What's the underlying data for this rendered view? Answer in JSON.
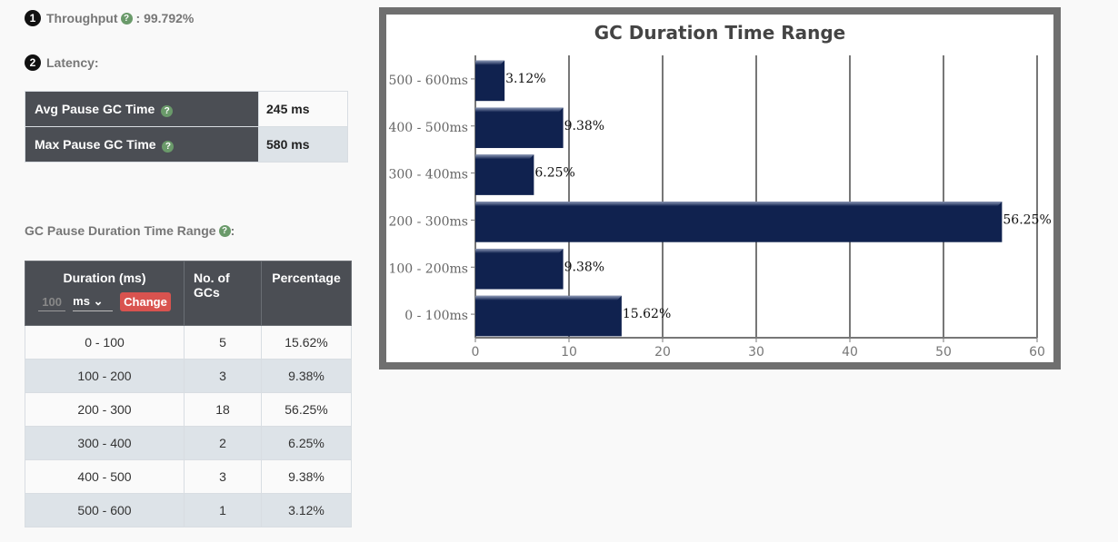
{
  "throughput": {
    "index": "1",
    "label": "Throughput",
    "help": "?",
    "value": ": 99.792%"
  },
  "latency": {
    "index": "2",
    "label": "Latency:",
    "rows": [
      {
        "label": "Avg Pause GC Time",
        "help": "?",
        "value": "245 ms"
      },
      {
        "label": "Max Pause GC Time",
        "help": "?",
        "value": "580 ms"
      }
    ]
  },
  "range_section": {
    "label": "GC Pause Duration Time Range",
    "help": "?",
    "suffix": ":"
  },
  "range_table": {
    "headers": {
      "duration": "Duration (ms)",
      "gcs": "No. of GCs",
      "percentage": "Percentage"
    },
    "controls": {
      "input_placeholder": "100",
      "unit": "ms",
      "chevron": "⌄",
      "change_label": "Change"
    },
    "rows": [
      {
        "range": "0 - 100",
        "count": "5",
        "pct": "15.62%"
      },
      {
        "range": "100 - 200",
        "count": "3",
        "pct": "9.38%"
      },
      {
        "range": "200 - 300",
        "count": "18",
        "pct": "56.25%"
      },
      {
        "range": "300 - 400",
        "count": "2",
        "pct": "6.25%"
      },
      {
        "range": "400 - 500",
        "count": "3",
        "pct": "9.38%"
      },
      {
        "range": "500 - 600",
        "count": "1",
        "pct": "3.12%"
      }
    ]
  },
  "chart_data": {
    "type": "bar",
    "orientation": "horizontal",
    "title": "GC Duration Time Range",
    "categories": [
      "0 - 100ms",
      "100 - 200ms",
      "200 - 300ms",
      "300 - 400ms",
      "400 - 500ms",
      "500 - 600ms"
    ],
    "values": [
      15.62,
      9.38,
      56.25,
      6.25,
      9.38,
      3.12
    ],
    "labels": [
      "15.62%",
      "9.38%",
      "56.25%",
      "6.25%",
      "9.38%",
      "3.12%"
    ],
    "xlim": [
      0,
      60
    ],
    "xticks": [
      0,
      10,
      20,
      30,
      40,
      50,
      60
    ],
    "xlabel": "",
    "ylabel": "",
    "bar_color": "#10224f",
    "grid": true
  }
}
